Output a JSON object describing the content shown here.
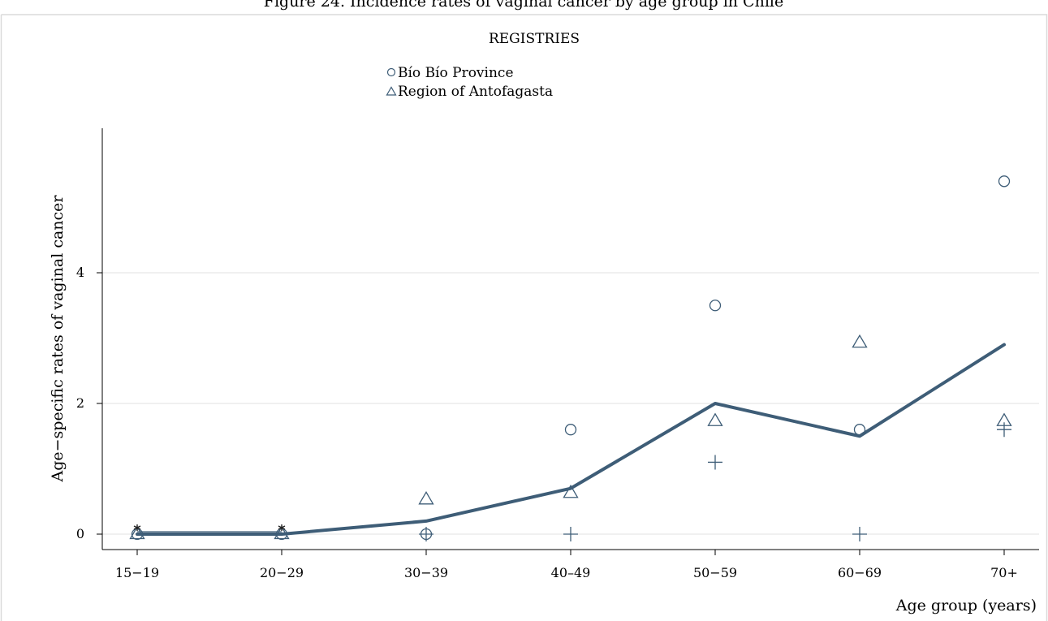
{
  "chart_data": {
    "type": "line",
    "title": "Figure 24. Incidence rates of vaginal cancer by age group in Chile",
    "legend_title": "REGISTRIES",
    "legend_placement": "top-center",
    "xlabel": "Age group (years)",
    "ylabel": "Age−specific rates of vaginal cancer",
    "categories": [
      "15−19",
      "20−29",
      "30−39",
      "40–49",
      "50−59",
      "60−69",
      "70+"
    ],
    "ylim": [
      -0.25,
      6.2
    ],
    "yticks": [
      "0",
      "2",
      "4"
    ],
    "grid": true,
    "color": "#3e5d77",
    "series": [
      {
        "name": "Bío Bío Province",
        "marker": "circle",
        "values": [
          0,
          0,
          0,
          1.6,
          3.5,
          1.6,
          5.4
        ]
      },
      {
        "name": "Region of Antofagasta",
        "marker": "triangle",
        "values": [
          0,
          0,
          0.53,
          0.63,
          1.73,
          2.93,
          1.73
        ]
      },
      {
        "marker": "plus",
        "values": [
          null,
          null,
          0,
          0,
          1.1,
          0,
          1.6
        ]
      },
      {
        "marker": "asterisk",
        "values": [
          0.1,
          0.1,
          null,
          null,
          null,
          null,
          null
        ]
      },
      {
        "marker": "line",
        "values": [
          0,
          0,
          0.2,
          0.7,
          2.0,
          1.5,
          2.9
        ]
      }
    ]
  }
}
